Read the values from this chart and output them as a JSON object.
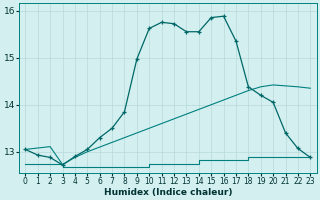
{
  "line1_x": [
    0,
    1,
    2,
    3,
    4,
    5,
    6,
    7,
    8,
    9,
    10,
    11,
    12,
    13,
    14,
    15,
    16,
    17,
    18,
    19,
    20,
    21,
    22,
    23
  ],
  "line1_y": [
    13.05,
    12.93,
    12.88,
    12.72,
    12.9,
    13.05,
    13.3,
    13.5,
    13.85,
    14.97,
    15.62,
    15.75,
    15.72,
    15.55,
    15.55,
    15.85,
    15.88,
    15.35,
    14.38,
    14.2,
    14.05,
    13.4,
    13.07,
    12.88
  ],
  "line2_x": [
    0,
    1,
    2,
    3,
    4,
    5,
    6,
    7,
    8,
    9,
    10,
    11,
    12,
    13,
    14,
    15,
    16,
    17,
    18,
    19,
    20,
    21,
    22,
    23
  ],
  "line2_y": [
    13.05,
    13.08,
    13.11,
    12.73,
    12.88,
    13.0,
    13.1,
    13.2,
    13.3,
    13.4,
    13.5,
    13.6,
    13.7,
    13.8,
    13.9,
    14.0,
    14.1,
    14.2,
    14.3,
    14.38,
    14.42,
    14.4,
    14.38,
    14.35
  ],
  "line3_x": [
    0,
    1,
    2,
    3,
    4,
    5,
    10,
    14,
    18,
    19,
    20,
    21,
    22,
    23
  ],
  "line3_y": [
    12.75,
    12.75,
    12.75,
    12.68,
    12.68,
    12.68,
    12.75,
    12.82,
    12.88,
    12.88,
    12.88,
    12.88,
    12.88,
    12.88
  ],
  "line_color_main": "#006868",
  "line_color_diag": "#008080",
  "line_color_flat": "#008080",
  "bg_color": "#d4efef",
  "grid_color": "#b8dada",
  "xlim": [
    -0.5,
    23.5
  ],
  "ylim": [
    12.55,
    16.15
  ],
  "yticks": [
    13,
    14,
    15,
    16
  ],
  "xticks": [
    0,
    1,
    2,
    3,
    4,
    5,
    6,
    7,
    8,
    9,
    10,
    11,
    12,
    13,
    14,
    15,
    16,
    17,
    18,
    19,
    20,
    21,
    22,
    23
  ],
  "xlabel": "Humidex (Indice chaleur)"
}
